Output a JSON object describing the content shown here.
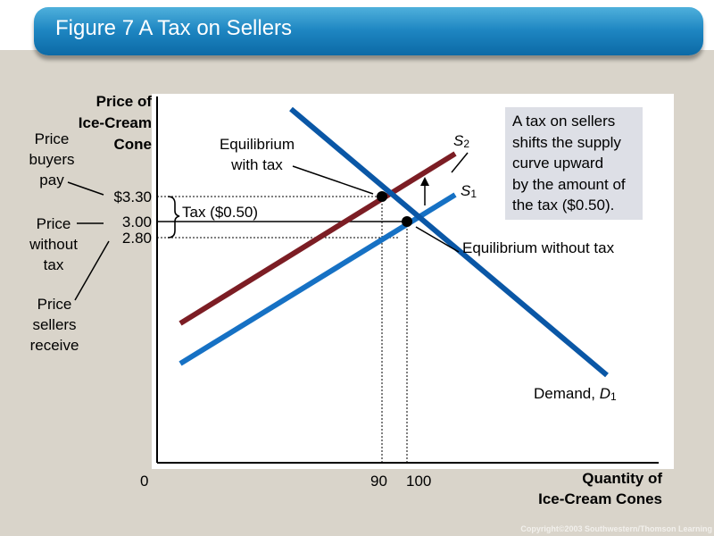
{
  "header": {
    "title": "Figure 7 A Tax on Sellers"
  },
  "axes": {
    "y_label": "Price of\nIce-Cream\nCone",
    "x_label": "Quantity of\nIce-Cream Cones",
    "origin": "0",
    "y_ticks": [
      "$3.30",
      "3.00",
      "2.80"
    ],
    "x_ticks": [
      "90",
      "100"
    ]
  },
  "side_labels": {
    "buyers": "Price\nbuyers\npay",
    "without_tax": "Price\nwithout\ntax",
    "sellers": "Price\nsellers\nreceive"
  },
  "annotations": {
    "tax": "Tax ($0.50)",
    "eq_with_tax": "Equilibrium\nwith tax",
    "eq_without_tax": "Equilibrium without tax",
    "s2_letter": "S",
    "s2_sub": "2",
    "s1_letter": "S",
    "s1_sub": "1",
    "demand_text": "Demand, ",
    "demand_letter": "D",
    "demand_sub": "1"
  },
  "note": "A tax on sellers\nshifts the supply\ncurve upward\nby the amount of\nthe tax ($0.50).",
  "footer": {
    "copyright": "Copyright©2003 Southwestern/Thomson Learning"
  },
  "colors": {
    "demand": "#0a57a6",
    "supply_original": "#1671c4",
    "supply_taxed": "#7c1d24"
  }
}
